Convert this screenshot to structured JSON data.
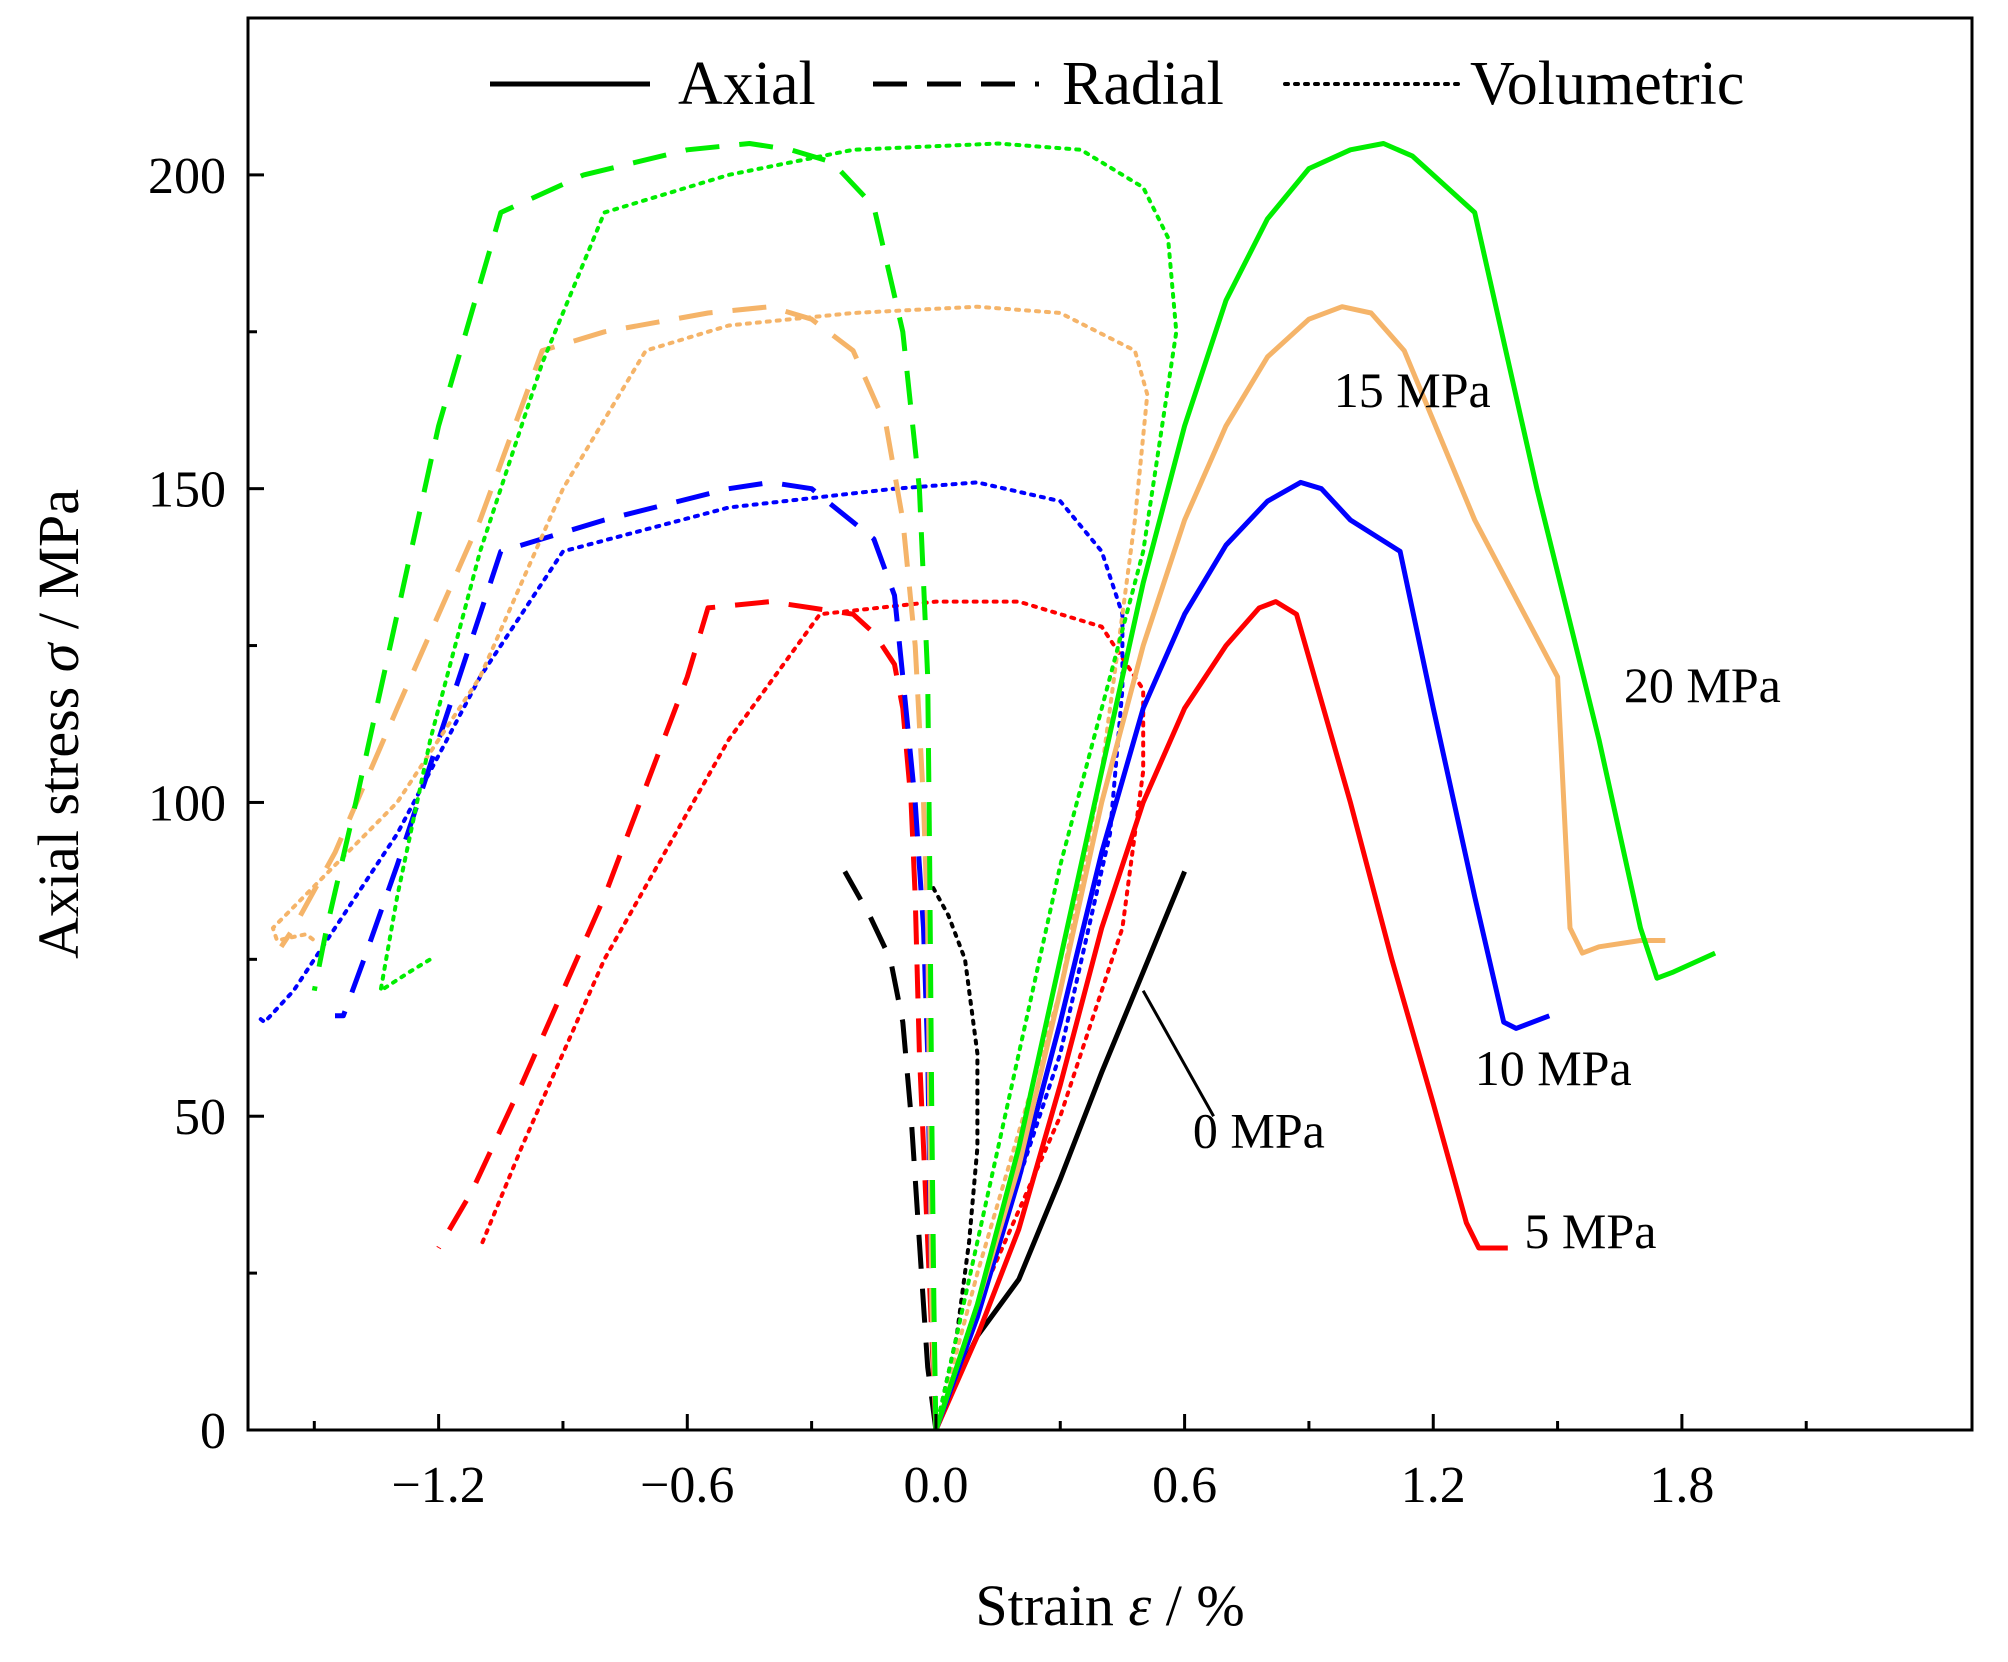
{
  "chart_data": {
    "type": "line",
    "title": "",
    "xlabel": {
      "prefix": "Strain ",
      "symbol": "ε",
      "suffix": " / %"
    },
    "ylabel": {
      "prefix": "Axial stress ",
      "symbol": "σ",
      "suffix": " / MPa"
    },
    "xlim": [
      -1.66,
      2.5
    ],
    "ylim": [
      0,
      225
    ],
    "xticks": [
      -1.2,
      -0.6,
      0.0,
      0.6,
      1.2,
      1.8
    ],
    "xtick_labels": [
      "−1.2",
      "−0.6",
      "0.0",
      "0.6",
      "1.2",
      "1.8"
    ],
    "xminor": [
      -1.5,
      -0.9,
      -0.3,
      0.3,
      0.9,
      1.5,
      2.1
    ],
    "yticks": [
      0,
      50,
      100,
      150,
      200
    ],
    "ytick_labels": [
      "0",
      "50",
      "100",
      "150",
      "200"
    ],
    "yminor": [
      25,
      75,
      125,
      175,
      225
    ],
    "grid": false,
    "legend": {
      "position": "top-center",
      "entries": [
        {
          "label": "Axial",
          "style": "solid"
        },
        {
          "label": "Radial",
          "style": "dashed"
        },
        {
          "label": "Volumetric",
          "style": "dotted"
        }
      ]
    },
    "annotations": [
      {
        "text": "0 MPa",
        "x": 0.62,
        "y": 45,
        "leader_from": [
          0.5,
          70
        ],
        "leader_to": [
          0.67,
          50
        ]
      },
      {
        "text": "5 MPa",
        "x": 1.42,
        "y": 29
      },
      {
        "text": "10 MPa",
        "x": 1.3,
        "y": 55
      },
      {
        "text": "15 MPa",
        "x": 0.96,
        "y": 163
      },
      {
        "text": "20 MPa",
        "x": 1.66,
        "y": 116
      }
    ],
    "series": [
      {
        "name": "0 MPa Axial",
        "pressure": "0 MPa",
        "strain_type": "Axial",
        "style": "solid",
        "color": "#000000",
        "points": [
          [
            0.0,
            0
          ],
          [
            0.05,
            8
          ],
          [
            0.1,
            15
          ],
          [
            0.2,
            24
          ],
          [
            0.3,
            40
          ],
          [
            0.4,
            57
          ],
          [
            0.5,
            73
          ],
          [
            0.6,
            89
          ]
        ]
      },
      {
        "name": "0 MPa Radial",
        "pressure": "0 MPa",
        "strain_type": "Radial",
        "style": "dashed",
        "color": "#000000",
        "points": [
          [
            0.0,
            0
          ],
          [
            -0.02,
            10
          ],
          [
            -0.03,
            20
          ],
          [
            -0.045,
            35
          ],
          [
            -0.06,
            50
          ],
          [
            -0.08,
            65
          ],
          [
            -0.11,
            75
          ],
          [
            -0.16,
            82
          ],
          [
            -0.22,
            89
          ]
        ]
      },
      {
        "name": "0 MPa Volumetric",
        "pressure": "0 MPa",
        "strain_type": "Volumetric",
        "style": "dotted",
        "color": "#000000",
        "points": [
          [
            0.0,
            0
          ],
          [
            0.05,
            15
          ],
          [
            0.08,
            30
          ],
          [
            0.1,
            45
          ],
          [
            0.1,
            60
          ],
          [
            0.07,
            75
          ],
          [
            0.03,
            82
          ],
          [
            -0.02,
            88
          ]
        ]
      },
      {
        "name": "5 MPa Axial",
        "pressure": "5 MPa",
        "strain_type": "Axial",
        "style": "solid",
        "color": "#ff0000",
        "points": [
          [
            0.0,
            0
          ],
          [
            0.1,
            15
          ],
          [
            0.2,
            32
          ],
          [
            0.3,
            55
          ],
          [
            0.4,
            80
          ],
          [
            0.5,
            100
          ],
          [
            0.6,
            115
          ],
          [
            0.7,
            125
          ],
          [
            0.78,
            131
          ],
          [
            0.82,
            132
          ],
          [
            0.87,
            130
          ],
          [
            1.0,
            100
          ],
          [
            1.1,
            75
          ],
          [
            1.2,
            52
          ],
          [
            1.28,
            33
          ],
          [
            1.31,
            29
          ],
          [
            1.38,
            29
          ]
        ]
      },
      {
        "name": "5 MPa Radial",
        "pressure": "5 MPa",
        "strain_type": "Radial",
        "style": "dashed",
        "color": "#ff0000",
        "points": [
          [
            0.0,
            0
          ],
          [
            -0.02,
            30
          ],
          [
            -0.04,
            60
          ],
          [
            -0.05,
            85
          ],
          [
            -0.06,
            100
          ],
          [
            -0.08,
            115
          ],
          [
            -0.1,
            122
          ],
          [
            -0.15,
            127
          ],
          [
            -0.2,
            130
          ],
          [
            -0.3,
            131
          ],
          [
            -0.4,
            132
          ],
          [
            -0.55,
            131
          ],
          [
            -0.6,
            120
          ],
          [
            -0.8,
            85
          ],
          [
            -1.0,
            55
          ],
          [
            -1.12,
            38
          ],
          [
            -1.2,
            29
          ]
        ]
      },
      {
        "name": "5 MPa Volumetric",
        "pressure": "5 MPa",
        "strain_type": "Volumetric",
        "style": "dotted",
        "color": "#ff0000",
        "points": [
          [
            0.0,
            0
          ],
          [
            0.1,
            20
          ],
          [
            0.3,
            50
          ],
          [
            0.45,
            80
          ],
          [
            0.5,
            105
          ],
          [
            0.5,
            118
          ],
          [
            0.4,
            128
          ],
          [
            0.2,
            132
          ],
          [
            0.0,
            132
          ],
          [
            -0.28,
            130
          ],
          [
            -0.5,
            110
          ],
          [
            -0.8,
            75
          ],
          [
            -1.0,
            45
          ],
          [
            -1.1,
            29
          ]
        ]
      },
      {
        "name": "10 MPa Axial",
        "pressure": "10 MPa",
        "strain_type": "Axial",
        "style": "solid",
        "color": "#0000ff",
        "points": [
          [
            0.0,
            0
          ],
          [
            0.1,
            18
          ],
          [
            0.2,
            40
          ],
          [
            0.3,
            65
          ],
          [
            0.4,
            92
          ],
          [
            0.5,
            115
          ],
          [
            0.6,
            130
          ],
          [
            0.7,
            141
          ],
          [
            0.8,
            148
          ],
          [
            0.88,
            151
          ],
          [
            0.93,
            150
          ],
          [
            1.0,
            145
          ],
          [
            1.12,
            140
          ],
          [
            1.2,
            115
          ],
          [
            1.3,
            85
          ],
          [
            1.37,
            65
          ],
          [
            1.4,
            64
          ],
          [
            1.48,
            66
          ]
        ]
      },
      {
        "name": "10 MPa Radial",
        "pressure": "10 MPa",
        "strain_type": "Radial",
        "style": "dashed",
        "color": "#0000ff",
        "points": [
          [
            0.0,
            0
          ],
          [
            -0.01,
            20
          ],
          [
            -0.015,
            40
          ],
          [
            -0.02,
            60
          ],
          [
            -0.03,
            80
          ],
          [
            -0.05,
            100
          ],
          [
            -0.08,
            120
          ],
          [
            -0.1,
            133
          ],
          [
            -0.15,
            142
          ],
          [
            -0.3,
            150
          ],
          [
            -0.4,
            151
          ],
          [
            -0.5,
            150
          ],
          [
            -0.8,
            145
          ],
          [
            -1.05,
            140
          ],
          [
            -1.2,
            110
          ],
          [
            -1.3,
            90
          ],
          [
            -1.38,
            75
          ],
          [
            -1.43,
            66
          ],
          [
            -1.45,
            66
          ]
        ]
      },
      {
        "name": "10 MPa Volumetric",
        "pressure": "10 MPa",
        "strain_type": "Volumetric",
        "style": "dotted",
        "color": "#0000ff",
        "points": [
          [
            0.0,
            0
          ],
          [
            0.1,
            20
          ],
          [
            0.3,
            60
          ],
          [
            0.42,
            95
          ],
          [
            0.45,
            118
          ],
          [
            0.45,
            130
          ],
          [
            0.4,
            140
          ],
          [
            0.3,
            148
          ],
          [
            0.1,
            151
          ],
          [
            -0.1,
            150
          ],
          [
            -0.5,
            147
          ],
          [
            -0.9,
            140
          ],
          [
            -1.1,
            120
          ],
          [
            -1.3,
            95
          ],
          [
            -1.45,
            80
          ],
          [
            -1.55,
            70
          ],
          [
            -1.62,
            65
          ],
          [
            -1.64,
            66
          ]
        ]
      },
      {
        "name": "15 MPa Axial",
        "pressure": "15 MPa",
        "strain_type": "Axial",
        "style": "solid",
        "color": "#f5b469",
        "points": [
          [
            0.0,
            0
          ],
          [
            0.1,
            20
          ],
          [
            0.2,
            42
          ],
          [
            0.3,
            70
          ],
          [
            0.4,
            100
          ],
          [
            0.5,
            125
          ],
          [
            0.6,
            145
          ],
          [
            0.7,
            160
          ],
          [
            0.8,
            171
          ],
          [
            0.9,
            177
          ],
          [
            0.98,
            179
          ],
          [
            1.05,
            178
          ],
          [
            1.13,
            172
          ],
          [
            1.3,
            145
          ],
          [
            1.42,
            130
          ],
          [
            1.5,
            120
          ],
          [
            1.53,
            80
          ],
          [
            1.56,
            76
          ],
          [
            1.6,
            77
          ],
          [
            1.7,
            78
          ],
          [
            1.76,
            78
          ]
        ]
      },
      {
        "name": "15 MPa Radial",
        "pressure": "15 MPa",
        "strain_type": "Radial",
        "style": "dashed",
        "color": "#f5b469",
        "points": [
          [
            0.0,
            0
          ],
          [
            -0.01,
            20
          ],
          [
            -0.015,
            50
          ],
          [
            -0.02,
            80
          ],
          [
            -0.03,
            100
          ],
          [
            -0.05,
            125
          ],
          [
            -0.08,
            145
          ],
          [
            -0.12,
            160
          ],
          [
            -0.2,
            172
          ],
          [
            -0.3,
            177
          ],
          [
            -0.4,
            179
          ],
          [
            -0.55,
            178
          ],
          [
            -0.8,
            175
          ],
          [
            -0.95,
            172
          ],
          [
            -1.1,
            145
          ],
          [
            -1.3,
            115
          ],
          [
            -1.45,
            92
          ],
          [
            -1.55,
            80
          ],
          [
            -1.58,
            77
          ]
        ]
      },
      {
        "name": "15 MPa Volumetric",
        "pressure": "15 MPa",
        "strain_type": "Volumetric",
        "style": "dotted",
        "color": "#f5b469",
        "points": [
          [
            0.0,
            0
          ],
          [
            0.1,
            25
          ],
          [
            0.3,
            70
          ],
          [
            0.4,
            105
          ],
          [
            0.48,
            145
          ],
          [
            0.51,
            165
          ],
          [
            0.48,
            172
          ],
          [
            0.3,
            178
          ],
          [
            0.1,
            179
          ],
          [
            -0.2,
            178
          ],
          [
            -0.5,
            176
          ],
          [
            -0.7,
            172
          ],
          [
            -0.9,
            150
          ],
          [
            -1.1,
            120
          ],
          [
            -1.3,
            100
          ],
          [
            -1.45,
            90
          ],
          [
            -1.6,
            80
          ],
          [
            -1.59,
            78
          ],
          [
            -1.52,
            79
          ],
          [
            -1.5,
            78
          ]
        ]
      },
      {
        "name": "20 MPa Axial",
        "pressure": "20 MPa",
        "strain_type": "Axial",
        "style": "solid",
        "color": "#00ee00",
        "points": [
          [
            0.0,
            0
          ],
          [
            0.1,
            20
          ],
          [
            0.2,
            45
          ],
          [
            0.3,
            75
          ],
          [
            0.4,
            105
          ],
          [
            0.5,
            135
          ],
          [
            0.6,
            160
          ],
          [
            0.7,
            180
          ],
          [
            0.8,
            193
          ],
          [
            0.9,
            201
          ],
          [
            1.0,
            204
          ],
          [
            1.08,
            205
          ],
          [
            1.15,
            203
          ],
          [
            1.3,
            194
          ],
          [
            1.45,
            150
          ],
          [
            1.6,
            110
          ],
          [
            1.7,
            80
          ],
          [
            1.74,
            72
          ],
          [
            1.78,
            73
          ],
          [
            1.88,
            76
          ]
        ]
      },
      {
        "name": "20 MPa Radial",
        "pressure": "20 MPa",
        "strain_type": "Radial",
        "style": "dashed",
        "color": "#00ee00",
        "points": [
          [
            0.0,
            0
          ],
          [
            -0.005,
            20
          ],
          [
            -0.01,
            50
          ],
          [
            -0.015,
            90
          ],
          [
            -0.02,
            120
          ],
          [
            -0.04,
            150
          ],
          [
            -0.08,
            175
          ],
          [
            -0.15,
            195
          ],
          [
            -0.25,
            202
          ],
          [
            -0.35,
            204
          ],
          [
            -0.45,
            205
          ],
          [
            -0.6,
            204
          ],
          [
            -0.85,
            200
          ],
          [
            -1.05,
            194
          ],
          [
            -1.2,
            160
          ],
          [
            -1.3,
            130
          ],
          [
            -1.4,
            100
          ],
          [
            -1.47,
            80
          ],
          [
            -1.5,
            70
          ]
        ]
      },
      {
        "name": "20 MPa Volumetric",
        "pressure": "20 MPa",
        "strain_type": "Volumetric",
        "style": "dotted",
        "color": "#00ee00",
        "points": [
          [
            0.0,
            0
          ],
          [
            0.1,
            30
          ],
          [
            0.3,
            90
          ],
          [
            0.5,
            140
          ],
          [
            0.58,
            175
          ],
          [
            0.56,
            190
          ],
          [
            0.5,
            198
          ],
          [
            0.35,
            204
          ],
          [
            0.15,
            205
          ],
          [
            -0.2,
            204
          ],
          [
            -0.5,
            200
          ],
          [
            -0.8,
            194
          ],
          [
            -0.95,
            170
          ],
          [
            -1.1,
            140
          ],
          [
            -1.22,
            110
          ],
          [
            -1.3,
            85
          ],
          [
            -1.34,
            70
          ],
          [
            -1.27,
            73
          ],
          [
            -1.22,
            75
          ]
        ]
      }
    ]
  }
}
